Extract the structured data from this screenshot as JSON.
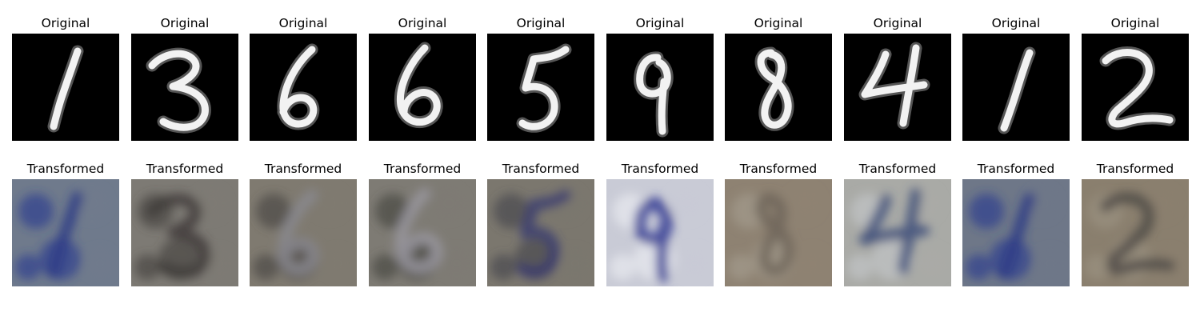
{
  "rows": [
    {
      "name": "original",
      "titles": [
        "Original",
        "Original",
        "Original",
        "Original",
        "Original",
        "Original",
        "Original",
        "Original",
        "Original",
        "Original"
      ]
    },
    {
      "name": "transformed",
      "titles": [
        "Transformed",
        "Transformed",
        "Transformed",
        "Transformed",
        "Transformed",
        "Transformed",
        "Transformed",
        "Transformed",
        "Transformed",
        "Transformed"
      ]
    }
  ],
  "digits": [
    "1",
    "3",
    "6",
    "6",
    "5",
    "9",
    "8",
    "4",
    "1",
    "2"
  ],
  "colors": {
    "background": "#ffffff",
    "original_background": "#000000",
    "original_stroke": "#f2f2f2"
  },
  "transformed_panels": [
    {
      "base": "#6f7a8c",
      "accent": "#2f3f8f",
      "stroke": "#2a3a86"
    },
    {
      "base": "#7d7a74",
      "accent": "#4a4742",
      "stroke": "#3e3b38"
    },
    {
      "base": "#7f7a70",
      "accent": "#4d4a46",
      "stroke": "#8a8a90"
    },
    {
      "base": "#7e7b74",
      "accent": "#4a4845",
      "stroke": "#9a98a0"
    },
    {
      "base": "#7b776e",
      "accent": "#4a4850",
      "stroke": "#3a3c70"
    },
    {
      "base": "#c9cbd6",
      "accent": "#e8e9f0",
      "stroke": "#2d3690"
    },
    {
      "base": "#8e8272",
      "accent": "#a39a8c",
      "stroke": "#6e655a"
    },
    {
      "base": "#a9aaa6",
      "accent": "#c2c4c6",
      "stroke": "#3d4d7a"
    },
    {
      "base": "#6e7788",
      "accent": "#2f3f8f",
      "stroke": "#2a3a86"
    },
    {
      "base": "#8a7f6e",
      "accent": "#9a9180",
      "stroke": "#4e4a46"
    }
  ]
}
